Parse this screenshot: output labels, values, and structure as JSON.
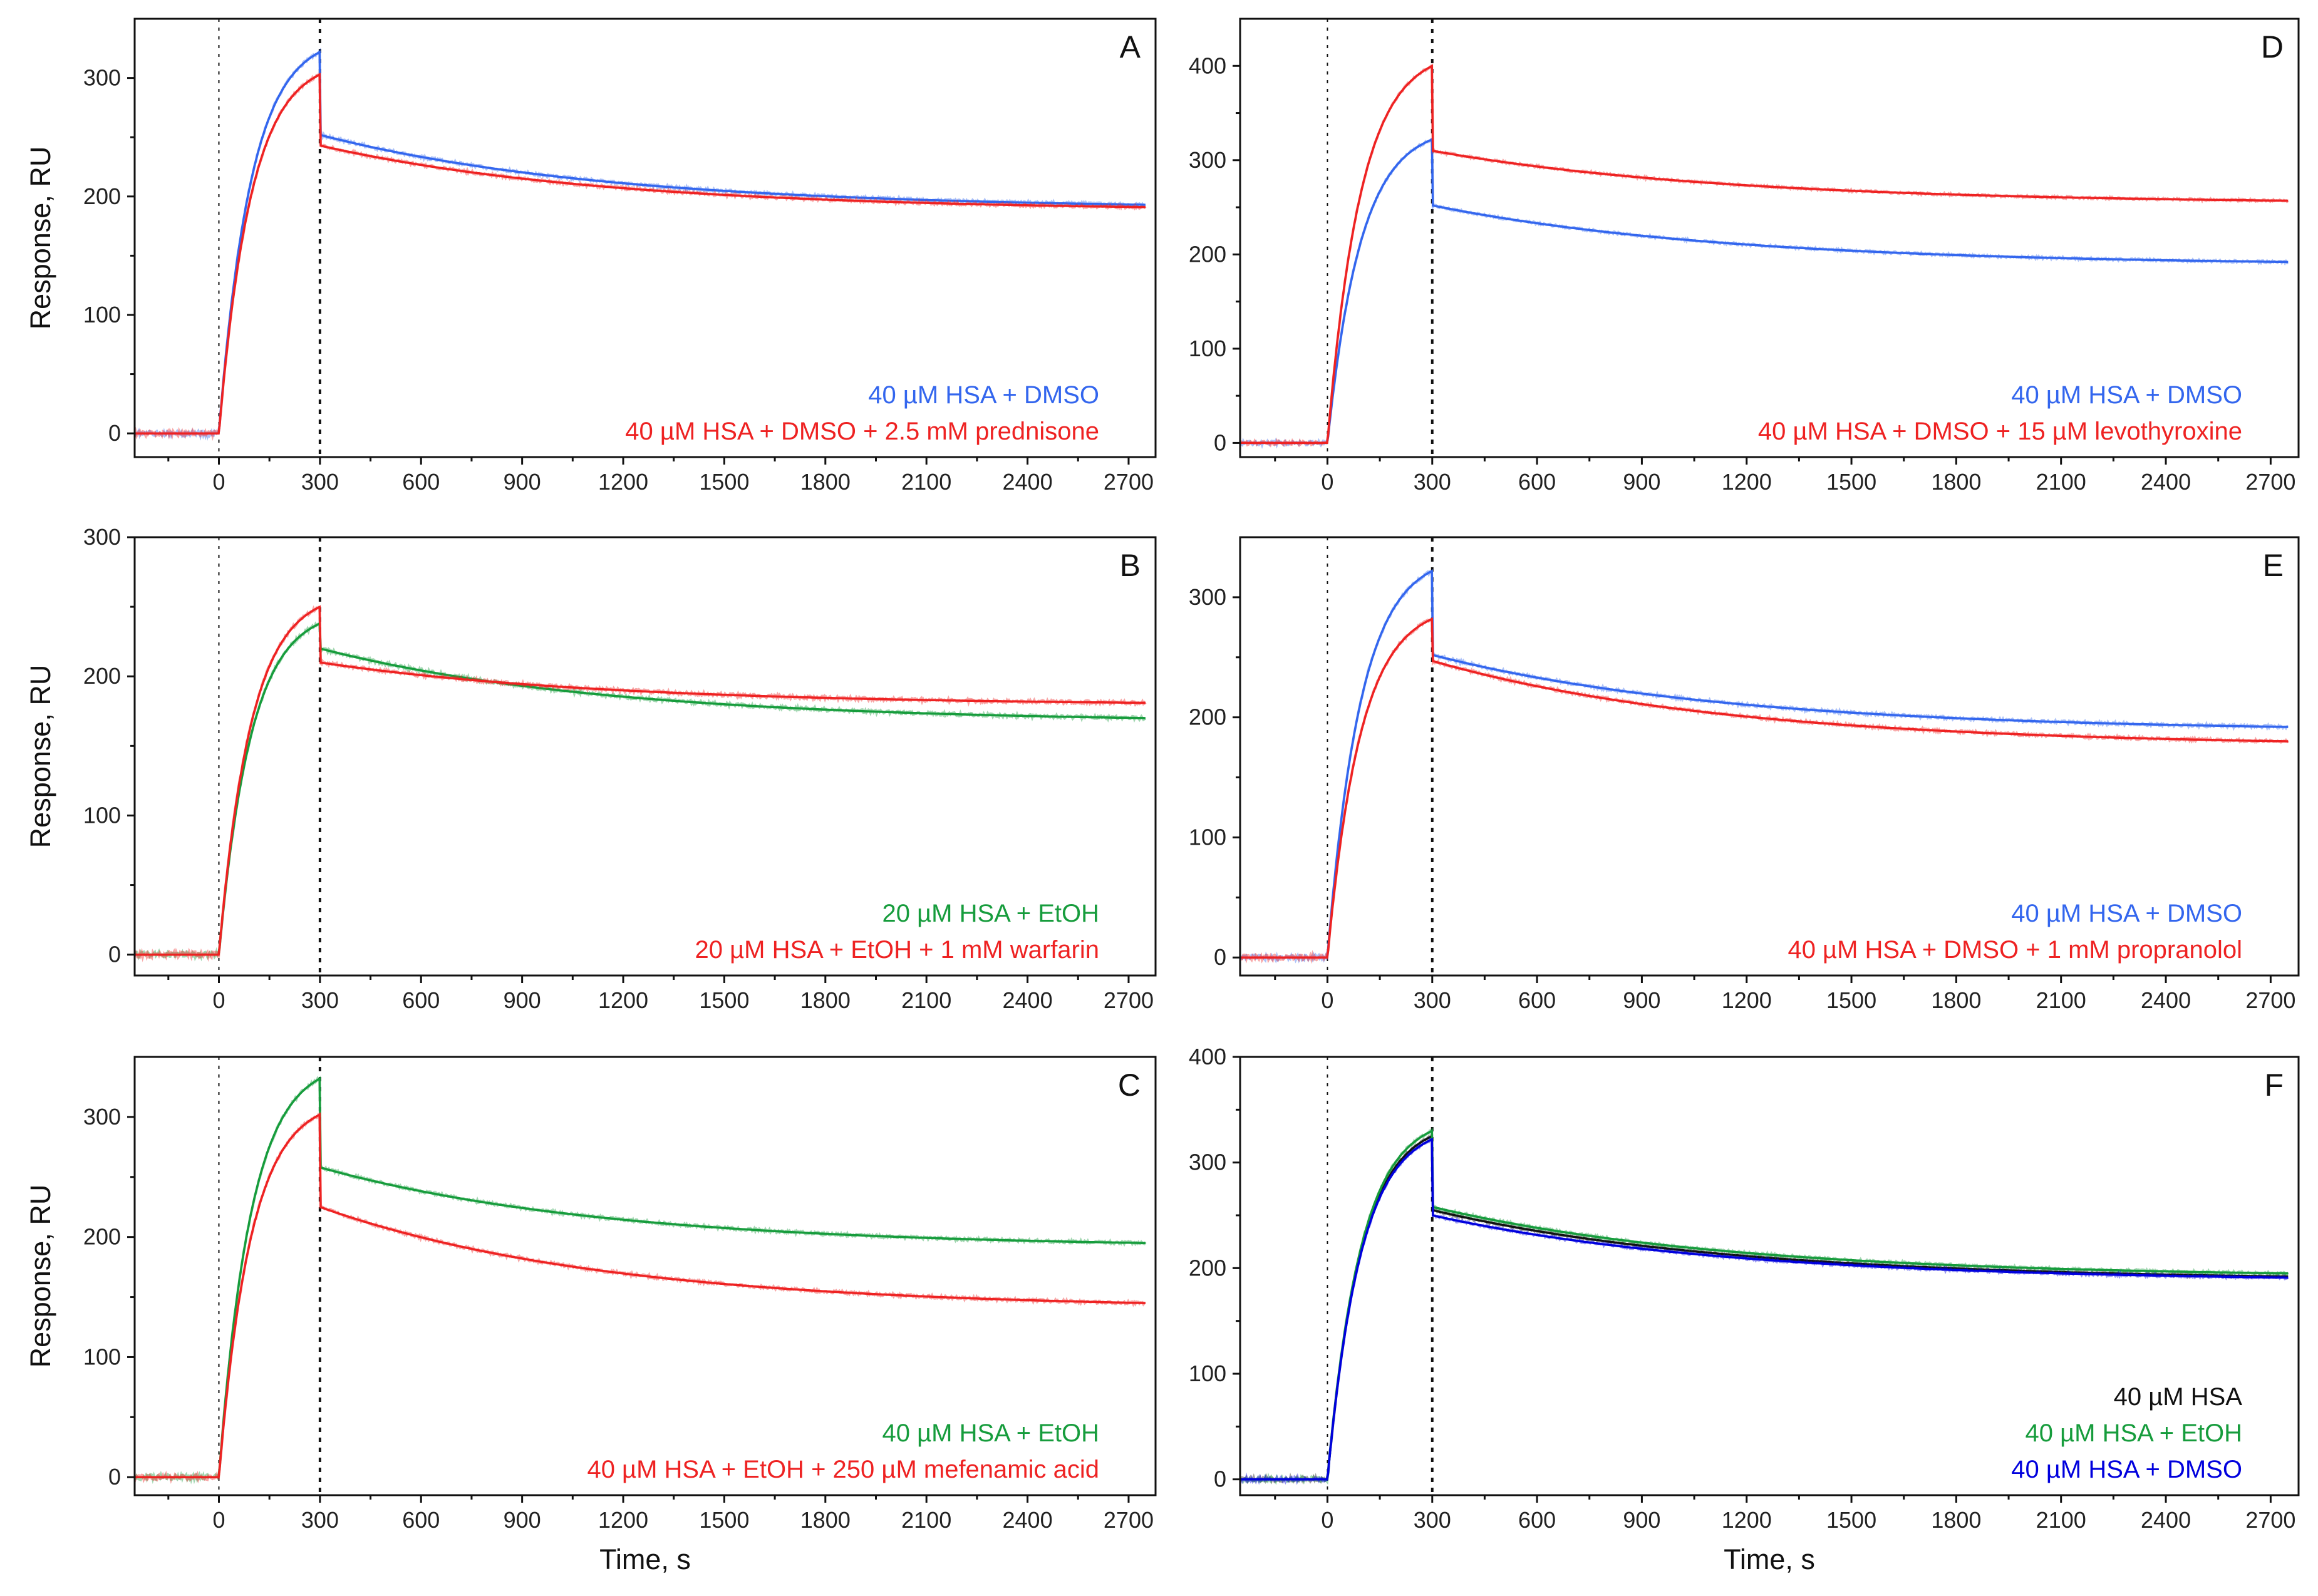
{
  "figure": {
    "x_title": "Time, s",
    "y_title": "Response, RU",
    "colors": {
      "blue": "#3366ee",
      "red": "#ee2222",
      "green": "#169c3c",
      "black": "#111111",
      "navy": "#0000dd"
    }
  },
  "chart_data": [
    {
      "id": "A",
      "type": "line",
      "panel_label": "A",
      "xlabel": "",
      "ylabel": "Response, RU",
      "xlim": [
        -250,
        2780
      ],
      "ylim": [
        -20,
        350
      ],
      "xticks": [
        0,
        300,
        600,
        900,
        1200,
        1500,
        1800,
        2100,
        2400,
        2700
      ],
      "yticks": [
        0,
        100,
        200,
        300
      ],
      "markers_x": [
        0,
        300
      ],
      "series": [
        {
          "name": "40 µM HSA + DMSO",
          "color": "blue",
          "peak": 322,
          "dissoc_start": 252,
          "end": 193
        },
        {
          "name": "40 µM HSA + DMSO + 2.5 mM prednisone",
          "color": "red",
          "peak": 303,
          "dissoc_start": 243,
          "end": 191
        }
      ]
    },
    {
      "id": "B",
      "type": "line",
      "panel_label": "B",
      "xlabel": "",
      "ylabel": "Response, RU",
      "xlim": [
        -250,
        2780
      ],
      "ylim": [
        -15,
        300
      ],
      "xticks": [
        0,
        300,
        600,
        900,
        1200,
        1500,
        1800,
        2100,
        2400,
        2700
      ],
      "yticks": [
        0,
        100,
        200,
        300
      ],
      "markers_x": [
        0,
        300
      ],
      "series": [
        {
          "name": "20 µM HSA + EtOH",
          "color": "green",
          "peak": 238,
          "dissoc_start": 220,
          "end": 170
        },
        {
          "name": "20 µM HSA + EtOH + 1 mM warfarin",
          "color": "red",
          "peak": 250,
          "dissoc_start": 210,
          "end": 181
        }
      ]
    },
    {
      "id": "C",
      "type": "line",
      "panel_label": "C",
      "xlabel": "Time, s",
      "ylabel": "Response, RU",
      "xlim": [
        -250,
        2780
      ],
      "ylim": [
        -15,
        350
      ],
      "xticks": [
        0,
        300,
        600,
        900,
        1200,
        1500,
        1800,
        2100,
        2400,
        2700
      ],
      "yticks": [
        0,
        100,
        200,
        300
      ],
      "markers_x": [
        0,
        300
      ],
      "series": [
        {
          "name": "40 µM HSA + EtOH",
          "color": "green",
          "peak": 332,
          "dissoc_start": 258,
          "end": 195
        },
        {
          "name": "40 µM HSA + EtOH + 250 µM mefenamic acid",
          "color": "red",
          "peak": 302,
          "dissoc_start": 225,
          "end": 145
        }
      ]
    },
    {
      "id": "D",
      "type": "line",
      "panel_label": "D",
      "xlabel": "",
      "ylabel": "",
      "xlim": [
        -250,
        2780
      ],
      "ylim": [
        -15,
        450
      ],
      "xticks": [
        0,
        300,
        600,
        900,
        1200,
        1500,
        1800,
        2100,
        2400,
        2700
      ],
      "yticks": [
        0,
        100,
        200,
        300,
        400
      ],
      "markers_x": [
        0,
        300
      ],
      "series": [
        {
          "name": "40 µM HSA + DMSO",
          "color": "blue",
          "peak": 322,
          "dissoc_start": 252,
          "end": 192
        },
        {
          "name": "40 µM HSA + DMSO + 15 µM levothyroxine",
          "color": "red",
          "peak": 400,
          "dissoc_start": 310,
          "end": 257
        }
      ]
    },
    {
      "id": "E",
      "type": "line",
      "panel_label": "E",
      "xlabel": "",
      "ylabel": "",
      "xlim": [
        -250,
        2780
      ],
      "ylim": [
        -15,
        350
      ],
      "xticks": [
        0,
        300,
        600,
        900,
        1200,
        1500,
        1800,
        2100,
        2400,
        2700
      ],
      "yticks": [
        0,
        100,
        200,
        300
      ],
      "markers_x": [
        0,
        300
      ],
      "series": [
        {
          "name": "40 µM HSA + DMSO",
          "color": "blue",
          "peak": 322,
          "dissoc_start": 252,
          "end": 192
        },
        {
          "name": "40 µM HSA + DMSO + 1 mM propranolol",
          "color": "red",
          "peak": 282,
          "dissoc_start": 247,
          "end": 180
        }
      ]
    },
    {
      "id": "F",
      "type": "line",
      "panel_label": "F",
      "xlabel": "Time, s",
      "ylabel": "",
      "xlim": [
        -250,
        2780
      ],
      "ylim": [
        -15,
        400
      ],
      "xticks": [
        0,
        300,
        600,
        900,
        1200,
        1500,
        1800,
        2100,
        2400,
        2700
      ],
      "yticks": [
        0,
        100,
        200,
        300,
        400
      ],
      "markers_x": [
        0,
        300
      ],
      "series": [
        {
          "name": "40 µM HSA",
          "color": "black",
          "peak": 325,
          "dissoc_start": 255,
          "end": 192
        },
        {
          "name": "40 µM HSA + EtOH",
          "color": "green",
          "peak": 330,
          "dissoc_start": 258,
          "end": 195
        },
        {
          "name": "40 µM HSA + DMSO",
          "color": "navy",
          "peak": 322,
          "dissoc_start": 250,
          "end": 191
        }
      ]
    }
  ]
}
